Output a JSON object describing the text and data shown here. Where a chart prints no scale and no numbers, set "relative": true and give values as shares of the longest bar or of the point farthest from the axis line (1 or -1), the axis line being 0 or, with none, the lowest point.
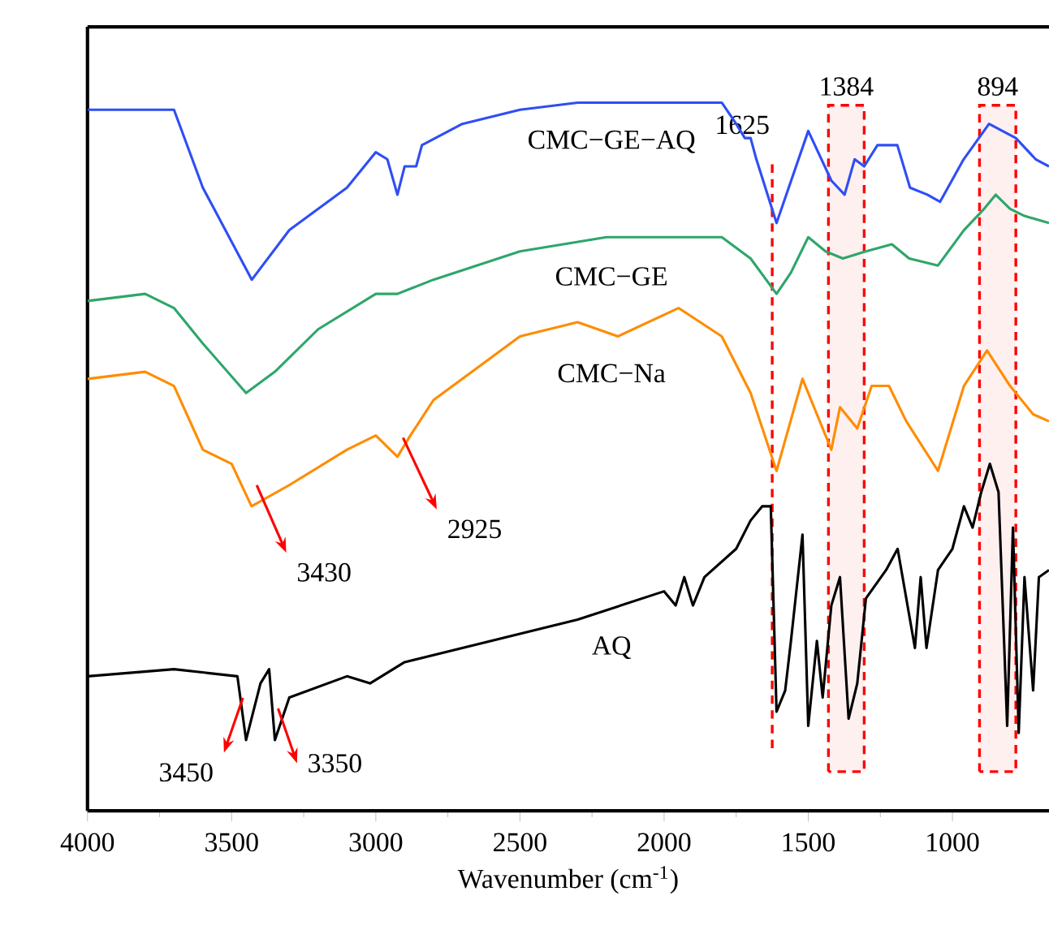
{
  "chart_data": {
    "type": "line",
    "relative": true,
    "xlabel": "Wavenumber (cm$^{-1}$)",
    "xlim": [
      4000,
      665
    ],
    "xticks": [
      4000,
      3500,
      3000,
      2500,
      2000,
      1500,
      1000
    ],
    "series": [
      {
        "name": "CMC−GE−AQ",
        "color": "#2f4ef5",
        "x": [
          4000,
          3700,
          3600,
          3430,
          3300,
          3100,
          3000,
          2960,
          2925,
          2900,
          2860,
          2840,
          2700,
          2500,
          2300,
          2000,
          1800,
          1750,
          1720,
          1700,
          1680,
          1610,
          1500,
          1420,
          1374,
          1339,
          1306,
          1260,
          1191,
          1147,
          1087,
          1043,
          961,
          873,
          780,
          711,
          665
        ],
        "values": [
          0.99,
          0.99,
          0.88,
          0.75,
          0.82,
          0.88,
          0.93,
          0.92,
          0.87,
          0.91,
          0.91,
          0.94,
          0.97,
          0.99,
          1.0,
          1.0,
          1.0,
          0.97,
          0.95,
          0.95,
          0.92,
          0.83,
          0.96,
          0.89,
          0.87,
          0.92,
          0.91,
          0.94,
          0.94,
          0.88,
          0.87,
          0.86,
          0.92,
          0.97,
          0.95,
          0.92,
          0.91
        ]
      },
      {
        "name": "CMC−GE",
        "color": "#2ea66b",
        "x": [
          4000,
          3800,
          3700,
          3600,
          3450,
          3350,
          3200,
          3000,
          2925,
          2800,
          2500,
          2200,
          1800,
          1700,
          1610,
          1560,
          1500,
          1440,
          1380,
          1300,
          1210,
          1150,
          1050,
          960,
          890,
          850,
          800,
          750,
          665
        ],
        "values": [
          0.72,
          0.73,
          0.71,
          0.66,
          0.59,
          0.62,
          0.68,
          0.73,
          0.73,
          0.75,
          0.79,
          0.81,
          0.81,
          0.78,
          0.73,
          0.76,
          0.81,
          0.79,
          0.78,
          0.79,
          0.8,
          0.78,
          0.77,
          0.82,
          0.85,
          0.87,
          0.85,
          0.84,
          0.83
        ]
      },
      {
        "name": "CMC−Na",
        "color": "#ff8c00",
        "x": [
          4000,
          3800,
          3700,
          3600,
          3500,
          3431,
          3300,
          3100,
          3000,
          2925,
          2880,
          2800,
          2500,
          2300,
          2160,
          1950,
          1800,
          1700,
          1610,
          1520,
          1420,
          1390,
          1330,
          1280,
          1220,
          1160,
          1050,
          960,
          880,
          800,
          720,
          665
        ],
        "values": [
          0.61,
          0.62,
          0.6,
          0.51,
          0.49,
          0.43,
          0.46,
          0.51,
          0.53,
          0.5,
          0.53,
          0.58,
          0.67,
          0.69,
          0.67,
          0.71,
          0.67,
          0.59,
          0.48,
          0.61,
          0.51,
          0.57,
          0.54,
          0.6,
          0.6,
          0.55,
          0.48,
          0.6,
          0.65,
          0.6,
          0.56,
          0.55
        ]
      },
      {
        "name": "AQ",
        "color": "#000000",
        "x": [
          4000,
          3700,
          3480,
          3450,
          3400,
          3370,
          3350,
          3300,
          3100,
          3020,
          2900,
          2600,
          2300,
          2000,
          1960,
          1930,
          1900,
          1860,
          1750,
          1700,
          1660,
          1630,
          1610,
          1580,
          1560,
          1520,
          1500,
          1470,
          1450,
          1420,
          1390,
          1360,
          1330,
          1300,
          1230,
          1190,
          1130,
          1110,
          1090,
          1050,
          1000,
          960,
          930,
          900,
          870,
          840,
          810,
          790,
          770,
          750,
          720,
          700,
          665
        ],
        "values": [
          0.19,
          0.2,
          0.19,
          0.1,
          0.18,
          0.2,
          0.1,
          0.16,
          0.19,
          0.18,
          0.21,
          0.24,
          0.27,
          0.31,
          0.29,
          0.33,
          0.29,
          0.33,
          0.37,
          0.41,
          0.43,
          0.43,
          0.14,
          0.17,
          0.24,
          0.39,
          0.12,
          0.24,
          0.16,
          0.29,
          0.33,
          0.13,
          0.18,
          0.3,
          0.34,
          0.37,
          0.23,
          0.33,
          0.23,
          0.34,
          0.37,
          0.43,
          0.4,
          0.45,
          0.49,
          0.45,
          0.12,
          0.4,
          0.11,
          0.33,
          0.17,
          0.33,
          0.34
        ]
      }
    ],
    "ref_lines": [
      {
        "axis": "x",
        "value": 1625,
        "label": "1625",
        "color": "#ff0000",
        "line_style": "dashed"
      }
    ],
    "bands": [
      {
        "axis": "x",
        "from": 1430,
        "to": 1306,
        "label": "1384",
        "color": "#ff0000"
      },
      {
        "axis": "x",
        "from": 906,
        "to": 780,
        "label": "894",
        "color": "#ff0000"
      }
    ],
    "annotations": [
      {
        "text": "3430",
        "x": 3430,
        "y": 0.43
      },
      {
        "text": "2925",
        "x": 2925,
        "y": 0.5
      },
      {
        "text": "3450",
        "x": 3450,
        "y": 0.1
      },
      {
        "text": "3350",
        "x": 3350,
        "y": 0.1
      }
    ]
  }
}
